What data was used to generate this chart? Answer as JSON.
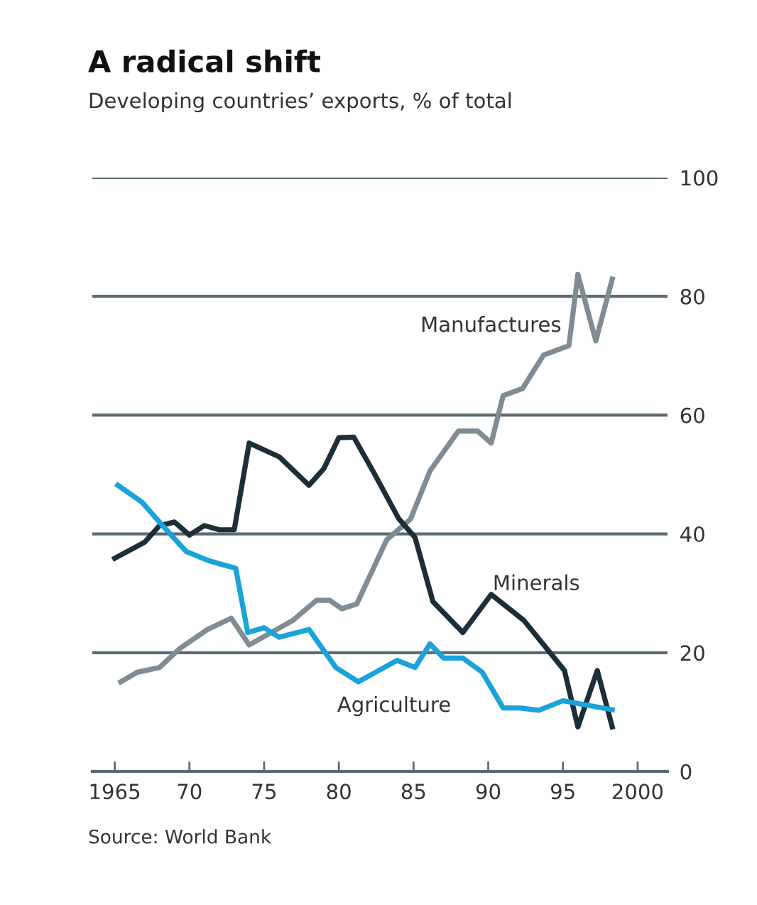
{
  "chart_data": {
    "type": "line",
    "title": "A radical shift",
    "subtitle": "Developing countries’ exports, % of total",
    "annotations": [
      "Source: World Bank"
    ],
    "series": [
      {
        "name": "Manufactures",
        "color": "#7f8c93",
        "x": [
          1965.4,
          1966.5,
          1968,
          1969.3,
          1971.2,
          1972.8,
          1974,
          1976.9,
          1978.5,
          1979.4,
          1980.2,
          1981.2,
          1983.2,
          1984.8,
          1986.1,
          1988,
          1989.3,
          1990.2,
          1991,
          1992.3,
          1993.7,
          1995.4,
          1996,
          1997.2,
          1998.3
        ],
        "values": [
          15.1,
          16.7,
          17.5,
          20.6,
          23.9,
          25.8,
          21.3,
          25.4,
          28.8,
          28.8,
          27.4,
          28.2,
          39,
          42.5,
          50.6,
          57.3,
          57.3,
          55.3,
          63.3,
          64.5,
          70.1,
          71.7,
          83.7,
          72.5,
          82.9
        ]
      },
      {
        "name": "Minerals",
        "color": "#1c2e38",
        "x": [
          1965,
          1967,
          1968,
          1969,
          1970,
          1971,
          1972,
          1973,
          1974,
          1976,
          1978,
          1979,
          1980,
          1981,
          1982.3,
          1984,
          1985.1,
          1986.3,
          1988.3,
          1990.2,
          1992.4,
          1995.1,
          1996,
          1997.3,
          1998.3
        ],
        "values": [
          35.9,
          38.6,
          41.4,
          42,
          39.8,
          41.4,
          40.7,
          40.7,
          55.3,
          53,
          48.2,
          51,
          56.2,
          56.3,
          50.5,
          42.6,
          39.4,
          28.6,
          23.4,
          29.8,
          25.4,
          17,
          7.5,
          17,
          7.5
        ]
      },
      {
        "name": "Agriculture",
        "color": "#1aa3d9",
        "x": [
          1965.2,
          1966.8,
          1968.2,
          1969.8,
          1971.4,
          1973.1,
          1973.9,
          1975,
          1976,
          1978,
          1979.8,
          1981.3,
          1983.9,
          1985.1,
          1986.1,
          1987,
          1988.3,
          1989.6,
          1991,
          1992.1,
          1993.4,
          1995,
          1998.3
        ],
        "values": [
          48.2,
          45.4,
          41.4,
          37,
          35.4,
          34.2,
          23.4,
          24.2,
          22.6,
          23.9,
          17.5,
          15.1,
          18.7,
          17.5,
          21.5,
          19.1,
          19.1,
          16.7,
          10.7,
          10.7,
          10.3,
          11.9,
          10.4
        ]
      }
    ],
    "xlim": [
      1963.5,
      2002
    ],
    "xticks": [
      {
        "value": 1965,
        "label": "1965"
      },
      {
        "value": 1970,
        "label": "70"
      },
      {
        "value": 1975,
        "label": "75"
      },
      {
        "value": 1980,
        "label": "80"
      },
      {
        "value": 1985,
        "label": "85"
      },
      {
        "value": 1990,
        "label": "90"
      },
      {
        "value": 1995,
        "label": "95"
      },
      {
        "value": 2000,
        "label": "2000"
      }
    ],
    "ylim": [
      0,
      100
    ],
    "yticks": [
      0,
      20,
      40,
      60,
      80,
      100
    ],
    "grid": "y",
    "legend": false,
    "marker": "none",
    "line_style": "solid"
  }
}
